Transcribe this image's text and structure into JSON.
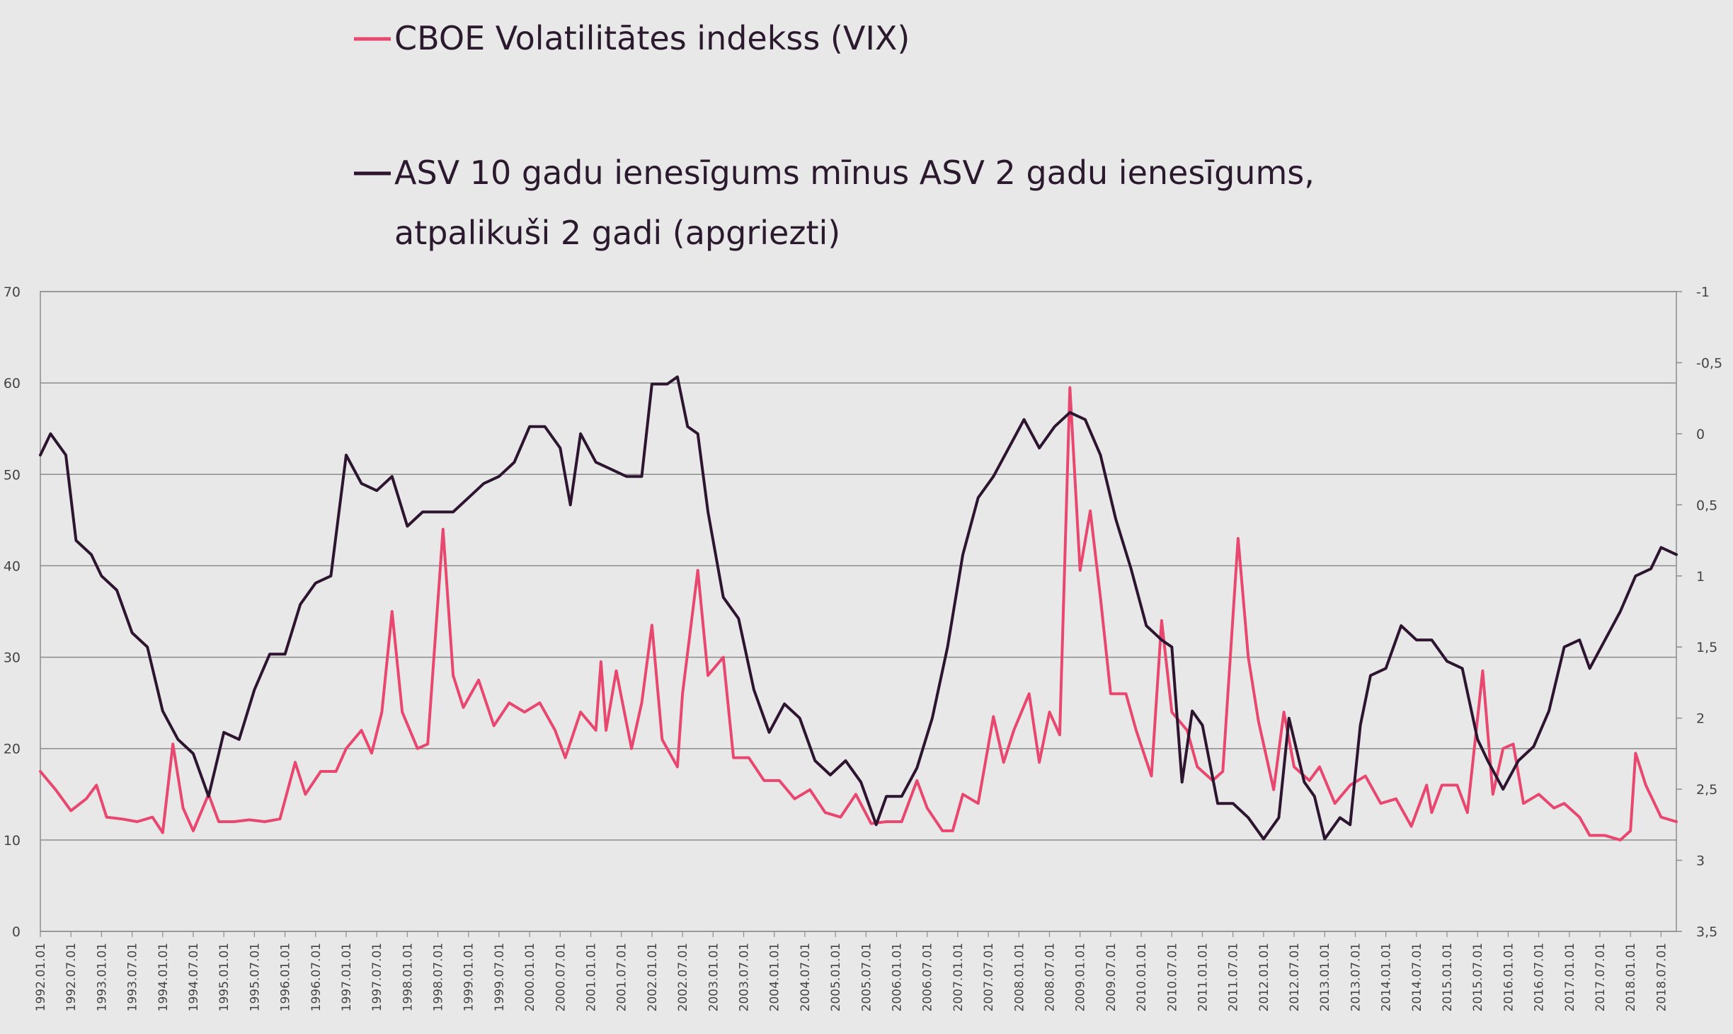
{
  "chart_data": {
    "type": "line",
    "title": "",
    "legend": {
      "placement": "top",
      "entries": [
        {
          "series": "vix",
          "label": "CBOE Volatilitātes indekss (VIX)"
        },
        {
          "series": "spread",
          "label_lines": [
            "ASV 10 gadu ienesīgums mīnus ASV 2 gadu ienesīgums,",
            "atpalikuši 2 gadi (apgriezti)"
          ]
        }
      ]
    },
    "colors": {
      "vix": "#e8476f",
      "spread": "#2d1530",
      "grid": "#8c8c8c",
      "background": "#e8e8e8"
    },
    "grid": true,
    "y_left": {
      "min": 0,
      "max": 70,
      "ticks": [
        "0",
        "10",
        "20",
        "30",
        "40",
        "50",
        "60",
        "70"
      ]
    },
    "y_right": {
      "min": -1,
      "max": 3.5,
      "inverted": true,
      "ticks": [
        "-1",
        "-0,5",
        "0",
        "0,5",
        "1",
        "1,5",
        "2",
        "2,5",
        "3",
        "3,5"
      ]
    },
    "x_axis": {
      "start": "1992.01",
      "end": "2018.10",
      "tick_labels": [
        "1992.01.01",
        "1992.07.01",
        "1993.01.01",
        "1993.07.01",
        "1994.01.01",
        "1994.07.01",
        "1995.01.01",
        "1995.07.01",
        "1996.01.01",
        "1996.07.01",
        "1997.01.01",
        "1997.07.01",
        "1998.01.01",
        "1998.07.01",
        "1999.01.01",
        "1999.07.01",
        "2000.01.01",
        "2000.07.01",
        "2001.01.01",
        "2001.07.01",
        "2002.01.01",
        "2002.07.01",
        "2003.01.01",
        "2003.07.01",
        "2004.01.01",
        "2004.07.01",
        "2005.01.01",
        "2005.07.01",
        "2006.01.01",
        "2006.07.01",
        "2007.01.01",
        "2007.07.01",
        "2008.01.01",
        "2008.07.01",
        "2009.01.01",
        "2009.07.01",
        "2010.01.01",
        "2010.07.01",
        "2011.01.01",
        "2011.07.01",
        "2012.01.01",
        "2012.07.01",
        "2013.01.01",
        "2013.07.01",
        "2014.01.01",
        "2014.07.01",
        "2015.01.01",
        "2015.07.01",
        "2016.01.01",
        "2016.07.01",
        "2017.01.01",
        "2017.07.01",
        "2018.01.01",
        "2018.07.01"
      ]
    },
    "series": [
      {
        "id": "vix",
        "axis": "left",
        "points": [
          [
            "1992.01",
            17.5
          ],
          [
            "1992.04",
            15.5
          ],
          [
            "1992.07",
            13.2
          ],
          [
            "1992.10",
            14.5
          ],
          [
            "1992.12",
            16.0
          ],
          [
            "1993.02",
            12.5
          ],
          [
            "1993.05",
            12.3
          ],
          [
            "1993.08",
            12.0
          ],
          [
            "1993.11",
            12.5
          ],
          [
            "1994.01",
            10.8
          ],
          [
            "1994.03",
            20.5
          ],
          [
            "1994.05",
            13.5
          ],
          [
            "1994.07",
            11.0
          ],
          [
            "1994.10",
            15.0
          ],
          [
            "1994.12",
            12.0
          ],
          [
            "1995.03",
            12.0
          ],
          [
            "1995.06",
            12.2
          ],
          [
            "1995.09",
            12.0
          ],
          [
            "1995.12",
            12.3
          ],
          [
            "1996.03",
            18.5
          ],
          [
            "1996.05",
            15.0
          ],
          [
            "1996.08",
            17.5
          ],
          [
            "1996.11",
            17.5
          ],
          [
            "1997.01",
            20.0
          ],
          [
            "1997.04",
            22.0
          ],
          [
            "1997.06",
            19.5
          ],
          [
            "1997.08",
            24.0
          ],
          [
            "1997.10",
            35.0
          ],
          [
            "1997.12",
            24.0
          ],
          [
            "1998.03",
            20.0
          ],
          [
            "1998.05",
            20.5
          ],
          [
            "1998.08",
            44.0
          ],
          [
            "1998.10",
            28.0
          ],
          [
            "1998.12",
            24.5
          ],
          [
            "1999.03",
            27.5
          ],
          [
            "1999.06",
            22.5
          ],
          [
            "1999.09",
            25.0
          ],
          [
            "1999.12",
            24.0
          ],
          [
            "2000.03",
            25.0
          ],
          [
            "2000.06",
            22.0
          ],
          [
            "2000.08",
            19.0
          ],
          [
            "2000.11",
            24.0
          ],
          [
            "2001.02",
            22.0
          ],
          [
            "2001.03",
            29.5
          ],
          [
            "2001.04",
            22.0
          ],
          [
            "2001.06",
            28.5
          ],
          [
            "2001.09",
            20.0
          ],
          [
            "2001.11",
            25.0
          ],
          [
            "2002.01",
            33.5
          ],
          [
            "2002.03",
            21.0
          ],
          [
            "2002.06",
            18.0
          ],
          [
            "2002.07",
            26.0
          ],
          [
            "2002.10",
            39.5
          ],
          [
            "2002.12",
            28.0
          ],
          [
            "2003.03",
            30.0
          ],
          [
            "2003.05",
            19.0
          ],
          [
            "2003.08",
            19.0
          ],
          [
            "2003.11",
            16.5
          ],
          [
            "2004.02",
            16.5
          ],
          [
            "2004.05",
            14.5
          ],
          [
            "2004.08",
            15.5
          ],
          [
            "2004.11",
            13.0
          ],
          [
            "2005.02",
            12.5
          ],
          [
            "2005.05",
            15.0
          ],
          [
            "2005.08",
            11.8
          ],
          [
            "2005.11",
            12.0
          ],
          [
            "2006.02",
            12.0
          ],
          [
            "2006.05",
            16.5
          ],
          [
            "2006.07",
            13.5
          ],
          [
            "2006.10",
            11.0
          ],
          [
            "2006.12",
            11.0
          ],
          [
            "2007.02",
            15.0
          ],
          [
            "2007.05",
            14.0
          ],
          [
            "2007.08",
            23.5
          ],
          [
            "2007.10",
            18.5
          ],
          [
            "2007.12",
            22.0
          ],
          [
            "2008.03",
            26.0
          ],
          [
            "2008.05",
            18.5
          ],
          [
            "2008.07",
            24.0
          ],
          [
            "2008.09",
            21.5
          ],
          [
            "2008.11",
            59.5
          ],
          [
            "2009.01",
            39.5
          ],
          [
            "2009.03",
            46.0
          ],
          [
            "2009.05",
            36.5
          ],
          [
            "2009.07",
            26.0
          ],
          [
            "2009.10",
            26.0
          ],
          [
            "2009.12",
            22.0
          ],
          [
            "2010.03",
            17.0
          ],
          [
            "2010.05",
            34.0
          ],
          [
            "2010.07",
            24.0
          ],
          [
            "2010.10",
            22.0
          ],
          [
            "2010.12",
            18.0
          ],
          [
            "2011.03",
            16.5
          ],
          [
            "2011.05",
            17.5
          ],
          [
            "2011.08",
            43.0
          ],
          [
            "2011.10",
            30.0
          ],
          [
            "2011.12",
            23.0
          ],
          [
            "2012.03",
            15.5
          ],
          [
            "2012.05",
            24.0
          ],
          [
            "2012.07",
            18.0
          ],
          [
            "2012.10",
            16.5
          ],
          [
            "2012.12",
            18.0
          ],
          [
            "2013.03",
            14.0
          ],
          [
            "2013.06",
            16.0
          ],
          [
            "2013.09",
            17.0
          ],
          [
            "2013.12",
            14.0
          ],
          [
            "2014.03",
            14.5
          ],
          [
            "2014.06",
            11.5
          ],
          [
            "2014.09",
            16.0
          ],
          [
            "2014.10",
            13.0
          ],
          [
            "2014.12",
            16.0
          ],
          [
            "2015.03",
            16.0
          ],
          [
            "2015.05",
            13.0
          ],
          [
            "2015.08",
            28.5
          ],
          [
            "2015.10",
            15.0
          ],
          [
            "2015.12",
            20.0
          ],
          [
            "2016.02",
            20.5
          ],
          [
            "2016.04",
            14.0
          ],
          [
            "2016.07",
            15.0
          ],
          [
            "2016.10",
            13.5
          ],
          [
            "2016.12",
            14.0
          ],
          [
            "2017.03",
            12.5
          ],
          [
            "2017.05",
            10.5
          ],
          [
            "2017.08",
            10.5
          ],
          [
            "2017.11",
            10.0
          ],
          [
            "2018.01",
            11.0
          ],
          [
            "2018.02",
            19.5
          ],
          [
            "2018.04",
            16.0
          ],
          [
            "2018.07",
            12.5
          ],
          [
            "2018.10",
            12.0
          ]
        ]
      },
      {
        "id": "spread",
        "axis": "right",
        "points": [
          [
            "1992.01",
            0.15
          ],
          [
            "1992.03",
            0.0
          ],
          [
            "1992.06",
            0.15
          ],
          [
            "1992.08",
            0.75
          ],
          [
            "1992.11",
            0.85
          ],
          [
            "1993.01",
            1.0
          ],
          [
            "1993.04",
            1.1
          ],
          [
            "1993.07",
            1.4
          ],
          [
            "1993.10",
            1.5
          ],
          [
            "1994.01",
            1.95
          ],
          [
            "1994.04",
            2.15
          ],
          [
            "1994.07",
            2.25
          ],
          [
            "1994.10",
            2.55
          ],
          [
            "1995.01",
            2.1
          ],
          [
            "1995.04",
            2.15
          ],
          [
            "1995.07",
            1.8
          ],
          [
            "1995.10",
            1.55
          ],
          [
            "1996.01",
            1.55
          ],
          [
            "1996.04",
            1.2
          ],
          [
            "1996.07",
            1.05
          ],
          [
            "1996.10",
            1.0
          ],
          [
            "1997.01",
            0.15
          ],
          [
            "1997.04",
            0.35
          ],
          [
            "1997.07",
            0.4
          ],
          [
            "1997.10",
            0.3
          ],
          [
            "1998.01",
            0.65
          ],
          [
            "1998.04",
            0.55
          ],
          [
            "1998.07",
            0.55
          ],
          [
            "1998.10",
            0.55
          ],
          [
            "1999.01",
            0.45
          ],
          [
            "1999.04",
            0.35
          ],
          [
            "1999.07",
            0.3
          ],
          [
            "1999.10",
            0.2
          ],
          [
            "2000.01",
            -0.05
          ],
          [
            "2000.04",
            -0.05
          ],
          [
            "2000.07",
            0.1
          ],
          [
            "2000.09",
            0.5
          ],
          [
            "2000.11",
            0.0
          ],
          [
            "2001.02",
            0.2
          ],
          [
            "2001.05",
            0.25
          ],
          [
            "2001.08",
            0.3
          ],
          [
            "2001.11",
            0.3
          ],
          [
            "2002.01",
            -0.35
          ],
          [
            "2002.04",
            -0.35
          ],
          [
            "2002.06",
            -0.4
          ],
          [
            "2002.08",
            -0.05
          ],
          [
            "2002.10",
            0.0
          ],
          [
            "2002.12",
            0.55
          ],
          [
            "2003.03",
            1.15
          ],
          [
            "2003.06",
            1.3
          ],
          [
            "2003.09",
            1.8
          ],
          [
            "2003.12",
            2.1
          ],
          [
            "2004.03",
            1.9
          ],
          [
            "2004.06",
            2.0
          ],
          [
            "2004.09",
            2.3
          ],
          [
            "2004.12",
            2.4
          ],
          [
            "2005.03",
            2.3
          ],
          [
            "2005.06",
            2.45
          ],
          [
            "2005.09",
            2.75
          ],
          [
            "2005.11",
            2.55
          ],
          [
            "2006.02",
            2.55
          ],
          [
            "2006.05",
            2.35
          ],
          [
            "2006.08",
            2.0
          ],
          [
            "2006.11",
            1.5
          ],
          [
            "2007.02",
            0.85
          ],
          [
            "2007.05",
            0.45
          ],
          [
            "2007.08",
            0.3
          ],
          [
            "2007.11",
            0.1
          ],
          [
            "2008.02",
            -0.1
          ],
          [
            "2008.05",
            0.1
          ],
          [
            "2008.08",
            -0.05
          ],
          [
            "2008.11",
            -0.15
          ],
          [
            "2009.02",
            -0.1
          ],
          [
            "2009.05",
            0.15
          ],
          [
            "2009.08",
            0.6
          ],
          [
            "2009.11",
            0.95
          ],
          [
            "2010.02",
            1.35
          ],
          [
            "2010.05",
            1.45
          ],
          [
            "2010.07",
            1.5
          ],
          [
            "2010.09",
            2.45
          ],
          [
            "2010.11",
            1.95
          ],
          [
            "2011.01",
            2.05
          ],
          [
            "2011.04",
            2.6
          ],
          [
            "2011.07",
            2.6
          ],
          [
            "2011.10",
            2.7
          ],
          [
            "2012.01",
            2.85
          ],
          [
            "2012.04",
            2.7
          ],
          [
            "2012.06",
            2.0
          ],
          [
            "2012.09",
            2.45
          ],
          [
            "2012.11",
            2.55
          ],
          [
            "2013.01",
            2.85
          ],
          [
            "2013.04",
            2.7
          ],
          [
            "2013.06",
            2.75
          ],
          [
            "2013.08",
            2.05
          ],
          [
            "2013.10",
            1.7
          ],
          [
            "2014.01",
            1.65
          ],
          [
            "2014.04",
            1.35
          ],
          [
            "2014.07",
            1.45
          ],
          [
            "2014.10",
            1.45
          ],
          [
            "2015.01",
            1.6
          ],
          [
            "2015.04",
            1.65
          ],
          [
            "2015.07",
            2.15
          ],
          [
            "2015.09",
            2.3
          ],
          [
            "2015.12",
            2.5
          ],
          [
            "2016.03",
            2.3
          ],
          [
            "2016.06",
            2.2
          ],
          [
            "2016.09",
            1.95
          ],
          [
            "2016.12",
            1.5
          ],
          [
            "2017.03",
            1.45
          ],
          [
            "2017.05",
            1.65
          ],
          [
            "2017.08",
            1.45
          ],
          [
            "2017.11",
            1.25
          ],
          [
            "2018.02",
            1.0
          ],
          [
            "2018.05",
            0.95
          ],
          [
            "2018.07",
            0.8
          ],
          [
            "2018.10",
            0.85
          ]
        ]
      }
    ]
  }
}
